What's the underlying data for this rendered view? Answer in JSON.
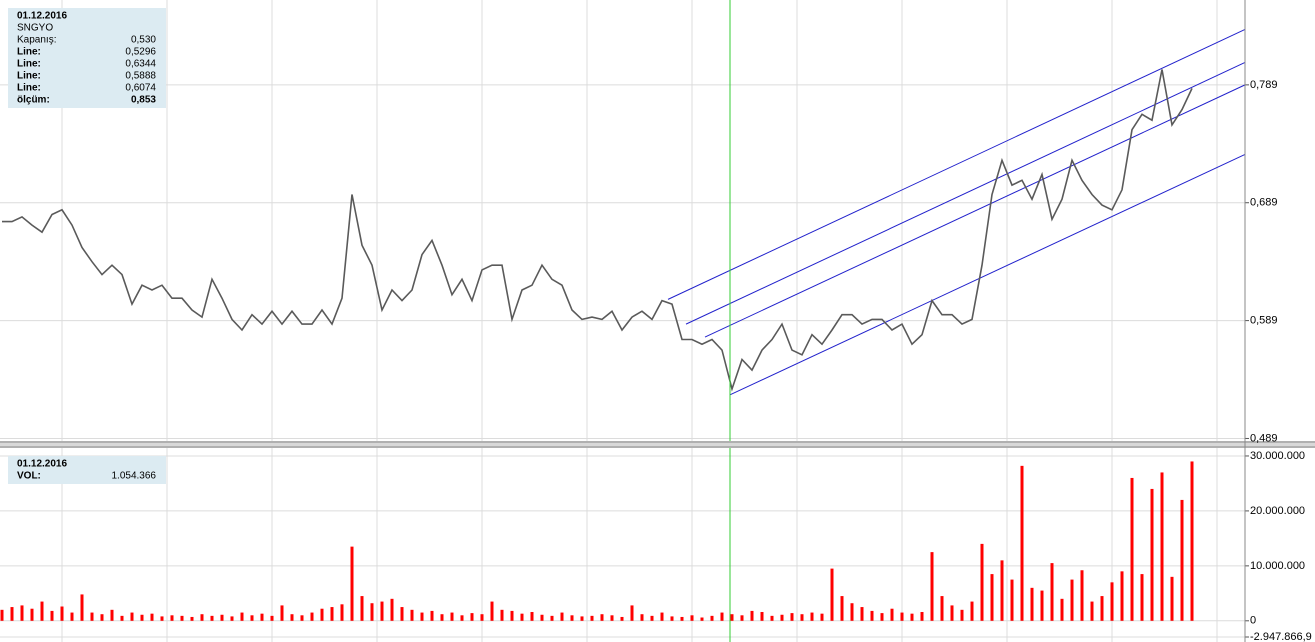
{
  "chart_data": [
    {
      "type": "line",
      "name": "SNGYO",
      "info": {
        "date": "01.12.2016",
        "rows": [
          [
            "SNGYO",
            null
          ],
          [
            "Kapanış:",
            "0,530"
          ],
          [
            "Line:",
            "0,5296"
          ],
          [
            "Line:",
            "0,6344"
          ],
          [
            "Line:",
            "0,5888"
          ],
          [
            "Line:",
            "0,6074"
          ],
          [
            "ölçüm:",
            "0,853"
          ]
        ]
      },
      "color": "#5a5a5a",
      "values": [
        0.673,
        0.673,
        0.677,
        0.67,
        0.664,
        0.679,
        0.683,
        0.67,
        0.651,
        0.639,
        0.628,
        0.636,
        0.628,
        0.603,
        0.619,
        0.615,
        0.619,
        0.608,
        0.608,
        0.598,
        0.592,
        0.624,
        0.608,
        0.59,
        0.581,
        0.594,
        0.586,
        0.597,
        0.586,
        0.597,
        0.586,
        0.586,
        0.598,
        0.586,
        0.608,
        0.696,
        0.653,
        0.636,
        0.598,
        0.615,
        0.606,
        0.615,
        0.645,
        0.657,
        0.636,
        0.611,
        0.624,
        0.606,
        0.632,
        0.636,
        0.636,
        0.59,
        0.615,
        0.619,
        0.636,
        0.624,
        0.619,
        0.598,
        0.59,
        0.592,
        0.59,
        0.597,
        0.581,
        0.592,
        0.597,
        0.59,
        0.606,
        0.603,
        0.573,
        0.573,
        0.569,
        0.573,
        0.564,
        0.531,
        0.556,
        0.547,
        0.564,
        0.573,
        0.586,
        0.564,
        0.56,
        0.577,
        0.569,
        0.581,
        0.594,
        0.594,
        0.586,
        0.59,
        0.59,
        0.581,
        0.586,
        0.569,
        0.577,
        0.606,
        0.594,
        0.594,
        0.586,
        0.59,
        0.636,
        0.696,
        0.725,
        0.704,
        0.708,
        0.692,
        0.713,
        0.675,
        0.692,
        0.725,
        0.708,
        0.696,
        0.687,
        0.683,
        0.7,
        0.751,
        0.764,
        0.759,
        0.802,
        0.755,
        0.768,
        0.786
      ],
      "trendlines": [
        {
          "color": "#2222cc",
          "x": [
            66.6,
            124.3
          ],
          "y": [
            0.607,
            0.836
          ]
        },
        {
          "color": "#2222cc",
          "x": [
            68.4,
            124.3
          ],
          "y": [
            0.586,
            0.808
          ]
        },
        {
          "color": "#2222cc",
          "x": [
            70.3,
            124.3
          ],
          "y": [
            0.575,
            0.789
          ]
        },
        {
          "color": "#2222cc",
          "x": [
            72.8,
            124.3
          ],
          "y": [
            0.526,
            0.73
          ]
        }
      ],
      "xlim": [
        -0.2,
        124.3
      ],
      "ylim": [
        0.486,
        0.861
      ],
      "yticks": [
        {
          "value": 0.789,
          "label": "0,789"
        },
        {
          "value": 0.689,
          "label": "0,689"
        },
        {
          "value": 0.589,
          "label": "0,589"
        },
        {
          "value": 0.489,
          "label": "0,489"
        }
      ],
      "grid": true
    },
    {
      "type": "bar",
      "name": "VOL",
      "info": {
        "date": "01.12.2016",
        "rows": [
          [
            "VOL:",
            "1.054.366"
          ]
        ]
      },
      "color": "#ff0000",
      "values": [
        2000000,
        2500000,
        2800000,
        2200000,
        3500000,
        1800000,
        2600000,
        1500000,
        4800000,
        1500000,
        1200000,
        2000000,
        900000,
        1500000,
        1100000,
        1300000,
        800000,
        1000000,
        900000,
        700000,
        1200000,
        900000,
        1100000,
        800000,
        1500000,
        1000000,
        1300000,
        900000,
        2800000,
        1200000,
        1000000,
        1500000,
        2200000,
        2500000,
        3000000,
        13500000,
        4500000,
        3200000,
        3500000,
        4000000,
        2500000,
        2000000,
        1500000,
        1800000,
        1200000,
        1500000,
        1000000,
        1400000,
        1200000,
        3500000,
        2000000,
        1800000,
        1300000,
        1600000,
        1100000,
        900000,
        1500000,
        1000000,
        800000,
        900000,
        1200000,
        1000000,
        700000,
        2800000,
        1200000,
        900000,
        1500000,
        800000,
        700000,
        1000000,
        600000,
        900000,
        1500000,
        1200000,
        1000000,
        1800000,
        1600000,
        900000,
        1100000,
        1400000,
        1200000,
        1500000,
        1300000,
        9500000,
        4500000,
        3200000,
        2500000,
        1800000,
        1400000,
        2200000,
        1500000,
        1300000,
        1600000,
        12500000,
        4500000,
        2800000,
        2000000,
        3500000,
        14000000,
        8500000,
        11000000,
        7500000,
        28200000,
        6000000,
        5500000,
        10500000,
        4000000,
        7500000,
        9200000,
        3500000,
        4500000,
        7000000,
        9000000,
        26000000,
        8500000,
        24000000,
        27000000,
        8000000,
        22000000,
        29000000
      ],
      "xlim": [
        -0.2,
        124.3
      ],
      "ylim": [
        -2947866.9,
        31450000
      ],
      "yticks": [
        {
          "value": 30000000,
          "label": "30.000.000"
        },
        {
          "value": 20000000,
          "label": "20.000.000"
        },
        {
          "value": 10000000,
          "label": "10.000.000"
        },
        0,
        {
          "value": -2947866.9,
          "label": "-2.947.866,9"
        }
      ],
      "grid": true
    }
  ]
}
